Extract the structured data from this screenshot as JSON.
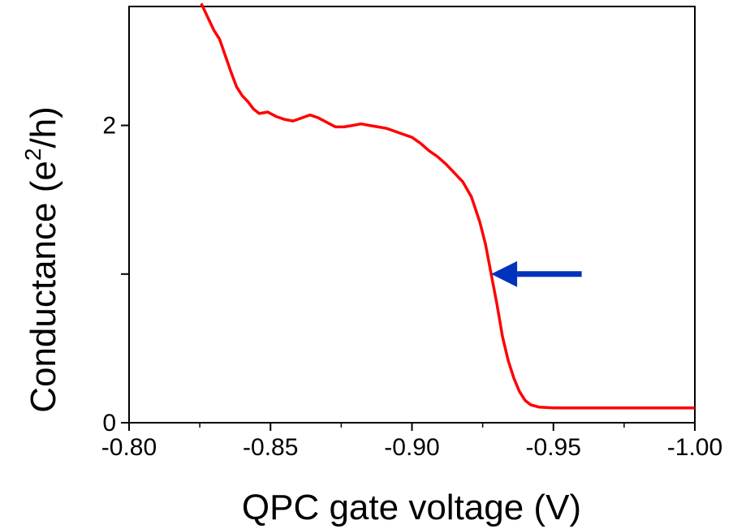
{
  "chart_data": {
    "type": "line",
    "title": "",
    "xlabel": "QPC gate voltage (V)",
    "ylabel": {
      "prefix": "Conductance (e",
      "sup": "2",
      "suffix": "/h)"
    },
    "xlim": [
      -0.8,
      -1.0
    ],
    "ylim": [
      0,
      2.8
    ],
    "x_ticks": [
      -0.8,
      -0.85,
      -0.9,
      -0.95,
      -1.0
    ],
    "x_tick_labels": [
      "-0.80",
      "-0.85",
      "-0.90",
      "-0.95",
      "-1.00"
    ],
    "y_ticks": [
      0,
      1,
      2
    ],
    "y_tick_labels": [
      "0",
      "",
      "2"
    ],
    "grid": false,
    "series": [
      {
        "color": "#ff0000",
        "points": [
          [
            -0.8255,
            2.82
          ],
          [
            -0.828,
            2.72
          ],
          [
            -0.83,
            2.64
          ],
          [
            -0.832,
            2.58
          ],
          [
            -0.834,
            2.47
          ],
          [
            -0.836,
            2.36
          ],
          [
            -0.838,
            2.26
          ],
          [
            -0.84,
            2.2
          ],
          [
            -0.842,
            2.16
          ],
          [
            -0.844,
            2.11
          ],
          [
            -0.846,
            2.08
          ],
          [
            -0.849,
            2.09
          ],
          [
            -0.852,
            2.06
          ],
          [
            -0.855,
            2.04
          ],
          [
            -0.858,
            2.03
          ],
          [
            -0.861,
            2.05
          ],
          [
            -0.864,
            2.07
          ],
          [
            -0.867,
            2.05
          ],
          [
            -0.87,
            2.02
          ],
          [
            -0.873,
            1.99
          ],
          [
            -0.876,
            1.99
          ],
          [
            -0.879,
            2.0
          ],
          [
            -0.882,
            2.01
          ],
          [
            -0.885,
            2.0
          ],
          [
            -0.888,
            1.99
          ],
          [
            -0.891,
            1.98
          ],
          [
            -0.894,
            1.96
          ],
          [
            -0.897,
            1.94
          ],
          [
            -0.9,
            1.92
          ],
          [
            -0.903,
            1.88
          ],
          [
            -0.906,
            1.83
          ],
          [
            -0.909,
            1.79
          ],
          [
            -0.912,
            1.74
          ],
          [
            -0.915,
            1.68
          ],
          [
            -0.918,
            1.62
          ],
          [
            -0.921,
            1.52
          ],
          [
            -0.924,
            1.35
          ],
          [
            -0.926,
            1.2
          ],
          [
            -0.928,
            1.0
          ],
          [
            -0.93,
            0.8
          ],
          [
            -0.932,
            0.58
          ],
          [
            -0.934,
            0.42
          ],
          [
            -0.936,
            0.3
          ],
          [
            -0.938,
            0.21
          ],
          [
            -0.94,
            0.15
          ],
          [
            -0.942,
            0.12
          ],
          [
            -0.945,
            0.105
          ],
          [
            -0.95,
            0.1
          ],
          [
            -0.96,
            0.1
          ],
          [
            -0.97,
            0.1
          ],
          [
            -0.98,
            0.1
          ],
          [
            -0.99,
            0.1
          ],
          [
            -1.0,
            0.1
          ]
        ]
      }
    ],
    "annotations": [
      {
        "type": "arrow",
        "color": "#0033bb",
        "points_to": [
          -0.928,
          1.0
        ],
        "from": [
          -0.96,
          1.0
        ]
      }
    ]
  }
}
